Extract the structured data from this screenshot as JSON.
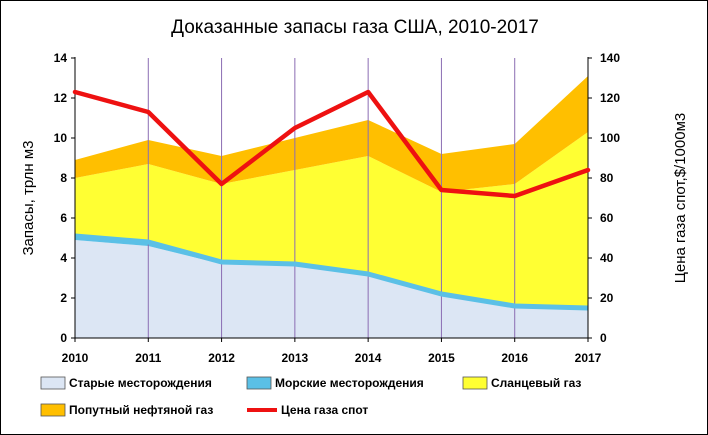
{
  "chart_data": {
    "type": "area",
    "title": "Доказанные запасы газа США, 2010-2017",
    "ylabel": "Запасы, трлн м3",
    "y2label": "Цена газа спот,$/1000м3",
    "xlabel": "",
    "x": [
      "2010",
      "2011",
      "2012",
      "2013",
      "2014",
      "2015",
      "2016",
      "2017"
    ],
    "ylim": [
      0,
      14
    ],
    "y2lim": [
      0,
      140
    ],
    "yticks": [
      "0",
      "2",
      "4",
      "6",
      "8",
      "10",
      "12",
      "14"
    ],
    "y2ticks": [
      "0",
      "20",
      "40",
      "60",
      "80",
      "100",
      "120",
      "140"
    ],
    "grid": "vertical",
    "legend_position": "bottom",
    "stacked_levels": [
      {
        "name": "Старые месторождения",
        "values": [
          4.9,
          4.6,
          3.7,
          3.6,
          3.1,
          2.1,
          1.5,
          1.4
        ],
        "color": "#dce6f4"
      },
      {
        "name": "Морские месторождения",
        "values": [
          5.1,
          4.8,
          3.8,
          3.7,
          3.2,
          2.2,
          1.6,
          1.5
        ],
        "color": "#5bc0e6"
      },
      {
        "name": "Сланцевый газ",
        "values": [
          8.0,
          8.7,
          7.7,
          8.4,
          9.1,
          7.3,
          7.7,
          10.3
        ],
        "color": "#ffff33"
      },
      {
        "name": "Попутный нефтяной газ",
        "values": [
          8.9,
          9.9,
          9.1,
          10.0,
          10.9,
          9.2,
          9.7,
          13.1
        ],
        "color": "#ffbf00"
      }
    ],
    "line_series": {
      "name": "Цена газа спот",
      "axis": "right",
      "values": [
        123,
        113,
        77,
        105,
        123,
        74,
        71,
        84
      ],
      "color": "#ee1111"
    },
    "legend": [
      {
        "label": "Старые месторождения",
        "color": "#dce6f4"
      },
      {
        "label": "Морские месторождения",
        "color": "#5bc0e6"
      },
      {
        "label": "Сланцевый газ",
        "color": "#ffff33"
      },
      {
        "label": "Попутный нефтяной газ",
        "color": "#ffbf00"
      },
      {
        "label": "Цена газа спот",
        "color": "#ee1111"
      }
    ]
  }
}
